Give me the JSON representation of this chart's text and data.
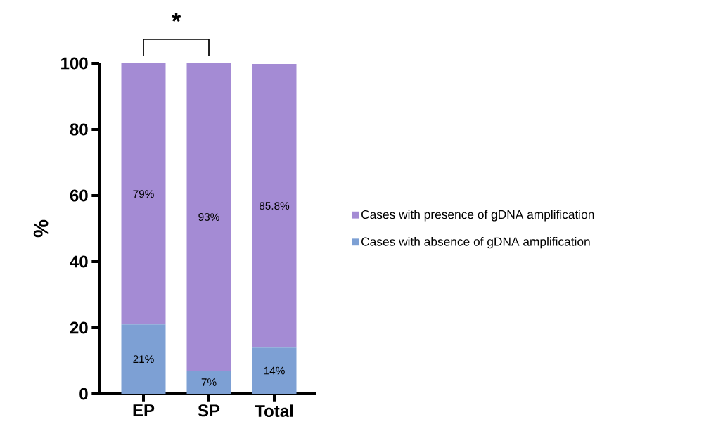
{
  "chart_data": {
    "type": "bar",
    "stacked": true,
    "categories": [
      "EP",
      "SP",
      "Total"
    ],
    "ylabel": "%",
    "ylim": [
      0,
      100
    ],
    "yticks": [
      0,
      20,
      40,
      60,
      80,
      100
    ],
    "series": [
      {
        "name": "Cases with absence of gDNA amplification",
        "color": "#7da0d4",
        "values": [
          21,
          7,
          14
        ],
        "value_labels": [
          "21%",
          "7%",
          "14%"
        ]
      },
      {
        "name": "Cases with presence of gDNA amplification",
        "color": "#a48bd4",
        "values": [
          79,
          93,
          85.8
        ],
        "value_labels": [
          "79%",
          "93%",
          "85.8%"
        ]
      }
    ],
    "legend": "right",
    "grid": false,
    "annotations": [
      "*"
    ]
  }
}
